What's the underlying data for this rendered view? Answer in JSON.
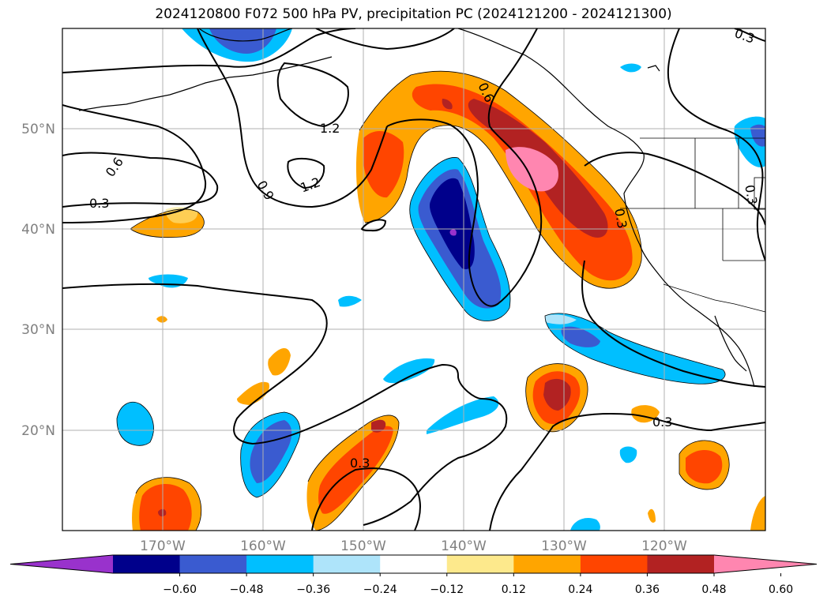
{
  "title": "2024120800 F072 500 hPa PV, precipitation PC (2024121200 - 2024121300)",
  "map": {
    "lon_labels": [
      "170°W",
      "160°W",
      "150°W",
      "140°W",
      "130°W",
      "120°W"
    ],
    "lat_labels": [
      "50°N",
      "40°N",
      "30°N",
      "20°N"
    ],
    "contour_labels": [
      {
        "id": "c-03-a",
        "text": "0.3"
      },
      {
        "id": "c-06-a",
        "text": "0.6"
      },
      {
        "id": "c-09-a",
        "text": "0.9"
      },
      {
        "id": "c-12-a",
        "text": "1.2"
      },
      {
        "id": "c-12-b",
        "text": "1.2"
      },
      {
        "id": "c-06-b",
        "text": "0.6"
      },
      {
        "id": "c-03-b",
        "text": "0.3"
      },
      {
        "id": "c-03-c",
        "text": "0.3"
      },
      {
        "id": "c-03-d",
        "text": "0.3"
      },
      {
        "id": "c-03-e",
        "text": "0.3"
      },
      {
        "id": "c-03-f",
        "text": "0.3"
      }
    ]
  },
  "colorbar": {
    "ticks": [
      "−0.60",
      "−0.48",
      "−0.36",
      "−0.24",
      "−0.12",
      "0.12",
      "0.24",
      "0.36",
      "0.48",
      "0.60"
    ],
    "colors": [
      "#9932cc",
      "#00008b",
      "#3a5bd0",
      "#00bfff",
      "#aee4fa",
      "#ffffff",
      "#fde98c",
      "#ffa500",
      "#ff4500",
      "#b22222",
      "#ff86b0"
    ]
  }
}
